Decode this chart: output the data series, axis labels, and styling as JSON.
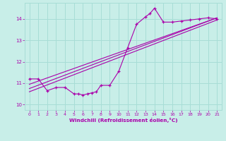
{
  "background_color": "#c8eee8",
  "grid_color": "#a8ddd6",
  "line_color": "#aa00aa",
  "xlabel": "Windchill (Refroidissement éolien,°C)",
  "xlim": [
    -0.5,
    21.5
  ],
  "ylim": [
    9.75,
    14.75
  ],
  "yticks": [
    10,
    11,
    12,
    13,
    14
  ],
  "xticks": [
    0,
    1,
    2,
    3,
    4,
    5,
    6,
    7,
    8,
    9,
    10,
    11,
    12,
    13,
    14,
    15,
    16,
    17,
    18,
    19,
    20,
    21
  ],
  "curve_x": [
    0,
    1,
    2,
    3,
    4,
    5,
    5.5,
    6,
    6.5,
    7,
    7.5,
    8,
    9,
    10,
    11,
    12,
    13,
    13.5,
    14,
    15,
    16,
    17,
    18,
    19,
    20,
    21
  ],
  "curve_y": [
    11.2,
    11.2,
    10.65,
    10.8,
    10.8,
    10.5,
    10.5,
    10.45,
    10.5,
    10.55,
    10.6,
    10.9,
    10.9,
    11.55,
    12.65,
    13.75,
    14.1,
    14.25,
    14.5,
    13.85,
    13.85,
    13.9,
    13.95,
    14.0,
    14.05,
    14.0
  ],
  "line1_x": [
    0,
    21
  ],
  "line1_y": [
    10.6,
    13.95
  ],
  "line2_x": [
    0,
    21
  ],
  "line2_y": [
    10.75,
    14.05
  ],
  "line3_x": [
    0,
    21
  ],
  "line3_y": [
    10.95,
    14.05
  ]
}
